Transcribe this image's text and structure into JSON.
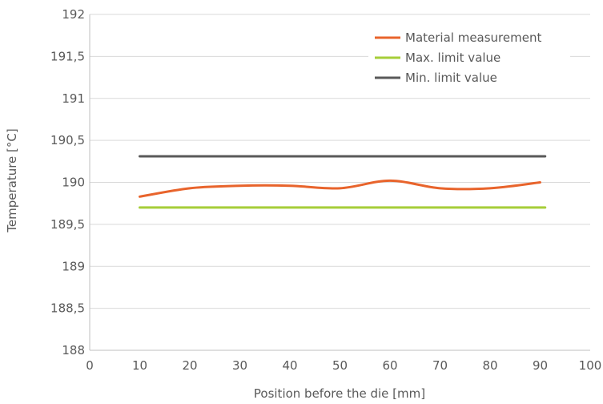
{
  "chart_data": {
    "type": "line",
    "title": "",
    "xlabel": "Position before the die [mm]",
    "ylabel": "Temperature [°C]",
    "xlim": [
      0,
      100
    ],
    "ylim": [
      188,
      192
    ],
    "x_ticks": [
      0,
      10,
      20,
      30,
      40,
      50,
      60,
      70,
      80,
      90,
      100
    ],
    "x_tick_labels": [
      "0",
      "10",
      "20",
      "30",
      "40",
      "50",
      "60",
      "70",
      "80",
      "90",
      "100"
    ],
    "y_ticks": [
      188,
      188.5,
      189,
      189.5,
      190,
      190.5,
      191,
      191.5,
      192
    ],
    "y_tick_labels": [
      "188",
      "188,5",
      "189",
      "189,5",
      "190",
      "190,5",
      "191",
      "191,5",
      "192"
    ],
    "grid": "horizontal",
    "legend_position": "top-right",
    "series": [
      {
        "name": "Material measurement",
        "color": "#E8642C",
        "x": [
          10,
          20,
          30,
          40,
          50,
          60,
          70,
          80,
          90
        ],
        "y": [
          189.83,
          189.93,
          189.96,
          189.96,
          189.93,
          190.02,
          189.93,
          189.93,
          190.0
        ]
      },
      {
        "name": "Max. limit value",
        "color": "#A6CE39",
        "x": [
          10,
          91
        ],
        "y": [
          189.7,
          189.7
        ]
      },
      {
        "name": "Min. limit value",
        "color": "#595959",
        "x": [
          10,
          91
        ],
        "y": [
          190.31,
          190.31
        ]
      }
    ]
  }
}
